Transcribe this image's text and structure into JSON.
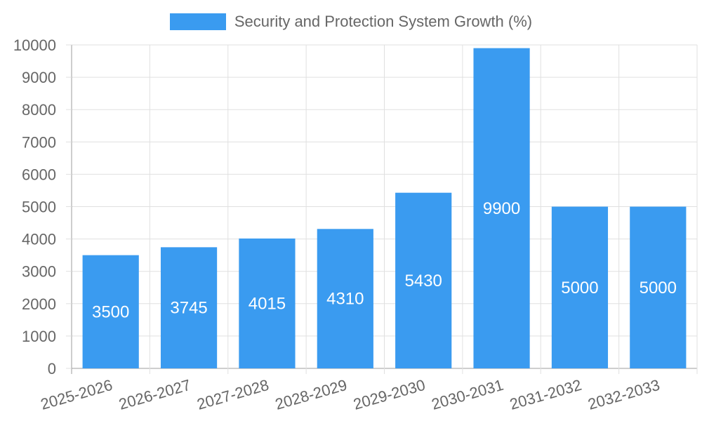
{
  "chart_data": {
    "type": "bar",
    "title": "",
    "xlabel": "",
    "ylabel": "",
    "categories": [
      "2025-2026",
      "2026-2027",
      "2027-2028",
      "2028-2029",
      "2029-2030",
      "2030-2031",
      "2031-2032",
      "2032-2033"
    ],
    "series": [
      {
        "name": "Security and Protection System Growth (%)",
        "values": [
          3500,
          3745,
          4015,
          4310,
          5430,
          9900,
          5000,
          5000
        ],
        "color": "#3a9bf0"
      }
    ],
    "ylim": [
      0,
      10000
    ],
    "yticks": [
      0,
      1000,
      2000,
      3000,
      4000,
      5000,
      6000,
      7000,
      8000,
      9000,
      10000
    ],
    "grid": true,
    "legend_position": "top-center"
  },
  "colors": {
    "grid": "#e0e0e0",
    "axis": "#9e9e9e",
    "text": "#666666"
  }
}
